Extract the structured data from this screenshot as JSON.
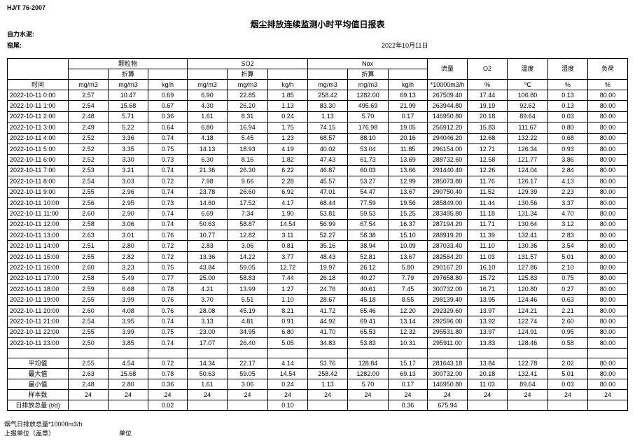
{
  "header": {
    "standard": "HJ/T  76-2007",
    "title": "烟尘排放连续监测小时平均值日报表",
    "company": "自力水泥:",
    "unit": "窑尾:",
    "date": "2022年10月11日"
  },
  "table": {
    "groups": [
      "颗粒物",
      "SO2",
      "Nox"
    ],
    "converted": [
      "折算",
      "折算",
      "折算"
    ],
    "others": [
      "流量",
      "O2",
      "温度",
      "湿度",
      "负荷"
    ],
    "time_label": "时间",
    "units": [
      "mg/m3",
      "mg/m3",
      "kg/h",
      "mg/m3",
      "mg/m3",
      "kg/h",
      "mg/m3",
      "mg/m3",
      "kg/h",
      "*10000m3/h",
      "%",
      "℃",
      "%",
      "%"
    ],
    "rows": [
      [
        "2022-10-11 0:00",
        "2.57",
        "10.47",
        "0.69",
        "6.90",
        "22.85",
        "1.85",
        "258.42",
        "1282.00",
        "69.13",
        "267509.40",
        "17.44",
        "106.80",
        "0.13",
        "80.00"
      ],
      [
        "2022-10-11 1:00",
        "2.54",
        "15.68",
        "0.67",
        "4.30",
        "26.20",
        "1.13",
        "83.30",
        "495.69",
        "21.99",
        "263944.80",
        "19.19",
        "92.62",
        "0.13",
        "80.00"
      ],
      [
        "2022-10-11 2:00",
        "2.48",
        "5.71",
        "0.36",
        "1.61",
        "8.31",
        "0.24",
        "1.13",
        "5.70",
        "0.17",
        "146950.80",
        "20.18",
        "89.64",
        "0.03",
        "80.00"
      ],
      [
        "2022-10-11 3:00",
        "2.49",
        "5.22",
        "0.64",
        "6.80",
        "16.94",
        "1.75",
        "74.15",
        "176.98",
        "19.05",
        "256912.20",
        "15.83",
        "111.67",
        "0.80",
        "80.00"
      ],
      [
        "2022-10-11 4:00",
        "2.52",
        "3.36",
        "0.74",
        "4.18",
        "5.45",
        "1.23",
        "68.57",
        "88.10",
        "20.16",
        "294046.20",
        "12.68",
        "132.22",
        "0.68",
        "80.00"
      ],
      [
        "2022-10-11 5:00",
        "2.52",
        "3.35",
        "0.75",
        "14.13",
        "18.93",
        "4.19",
        "40.02",
        "53.04",
        "11.85",
        "296154.00",
        "12.71",
        "126.34",
        "0.93",
        "80.00"
      ],
      [
        "2022-10-11 6:00",
        "2.52",
        "3.30",
        "0.73",
        "6.30",
        "8.16",
        "1.82",
        "47.43",
        "61.73",
        "13.69",
        "288732.60",
        "12.58",
        "121.77",
        "3.86",
        "80.00"
      ],
      [
        "2022-10-11 7:00",
        "2.53",
        "3.21",
        "0.74",
        "21.36",
        "26.30",
        "6.22",
        "46.87",
        "60.03",
        "13.66",
        "291440.40",
        "12.26",
        "124.04",
        "2.84",
        "80.00"
      ],
      [
        "2022-10-11 8:00",
        "2.54",
        "3.03",
        "0.72",
        "7.98",
        "9.66",
        "2.28",
        "45.57",
        "53.27",
        "12.99",
        "285073.80",
        "11.76",
        "126.17",
        "4.13",
        "80.00"
      ],
      [
        "2022-10-11 9:00",
        "2.55",
        "2.96",
        "0.74",
        "23.78",
        "26.60",
        "6.92",
        "47.01",
        "54.47",
        "13.67",
        "290750.40",
        "11.52",
        "129.39",
        "2.23",
        "80.00"
      ],
      [
        "2022-10-11 10:00",
        "2.56",
        "2.95",
        "0.73",
        "14.60",
        "17.52",
        "4.17",
        "68.44",
        "77.59",
        "19.56",
        "285849.00",
        "11.44",
        "130.56",
        "3.37",
        "80.00"
      ],
      [
        "2022-10-11 11:00",
        "2.60",
        "2.90",
        "0.74",
        "6.69",
        "7.34",
        "1.90",
        "53.81",
        "59.53",
        "15.25",
        "283495.80",
        "11.18",
        "131.34",
        "4.70",
        "80.00"
      ],
      [
        "2022-10-11 12:00",
        "2.58",
        "3.06",
        "0.74",
        "50.63",
        "58.87",
        "14.54",
        "56.99",
        "67.54",
        "16.37",
        "287194.20",
        "11.71",
        "130.64",
        "3.12",
        "80.00"
      ],
      [
        "2022-10-11 13:00",
        "2.63",
        "3.01",
        "0.76",
        "10.77",
        "12.82",
        "3.11",
        "52.27",
        "58.38",
        "15.10",
        "288919.20",
        "11.39",
        "132.41",
        "2.83",
        "80.00"
      ],
      [
        "2022-10-11 14:00",
        "2.51",
        "2.80",
        "0.72",
        "2.83",
        "3.06",
        "0.81",
        "35.16",
        "38.94",
        "10.09",
        "287033.40",
        "11.10",
        "130.36",
        "3.54",
        "80.00"
      ],
      [
        "2022-10-11 15:00",
        "2.55",
        "2.82",
        "0.72",
        "13.36",
        "14.22",
        "3.77",
        "48.43",
        "52.81",
        "13.67",
        "282564.20",
        "11.03",
        "131.57",
        "5.01",
        "80.00"
      ],
      [
        "2022-10-11 16:00",
        "2.60",
        "3.23",
        "0.75",
        "43.84",
        "59.05",
        "12.72",
        "19.97",
        "26.12",
        "5.80",
        "290167.20",
        "16.10",
        "127.86",
        "2.10",
        "80.00"
      ],
      [
        "2022-10-11 17:00",
        "2.58",
        "5.49",
        "0.77",
        "25.00",
        "58.83",
        "7.44",
        "26.18",
        "40.27",
        "7.79",
        "297658.80",
        "15.72",
        "125.83",
        "0.75",
        "80.00"
      ],
      [
        "2022-10-11 18:00",
        "2.59",
        "6.68",
        "0.78",
        "4.21",
        "13.99",
        "1.27",
        "24.76",
        "40.61",
        "7.45",
        "300732.00",
        "16.71",
        "120.80",
        "0.27",
        "80.00"
      ],
      [
        "2022-10-11 19:00",
        "2.55",
        "3.99",
        "0.76",
        "3.70",
        "5.51",
        "1.10",
        "28.67",
        "45.18",
        "8.55",
        "298139.40",
        "13.95",
        "124.46",
        "0.63",
        "80.00"
      ],
      [
        "2022-10-11 20:00",
        "2.60",
        "4.08",
        "0.76",
        "28.08",
        "45.19",
        "8.21",
        "41.72",
        "65.46",
        "12.20",
        "292329.60",
        "13.97",
        "124.21",
        "2.21",
        "80.00"
      ],
      [
        "2022-10-11 21:00",
        "2.54",
        "3.95",
        "0.74",
        "3.13",
        "4.81",
        "0.91",
        "44.92",
        "69.41",
        "13.14",
        "292596.00",
        "13.92",
        "122.74",
        "2.60",
        "80.00"
      ],
      [
        "2022-10-11 22:00",
        "2.55",
        "3.99",
        "0.75",
        "23.00",
        "34.95",
        "6.80",
        "41.70",
        "65.53",
        "12.32",
        "295531.80",
        "13.97",
        "124.91",
        "0.95",
        "80.00"
      ],
      [
        "2022-10-11 23:00",
        "2.50",
        "3.85",
        "0.74",
        "17.07",
        "26.40",
        "5.05",
        "34.83",
        "53.83",
        "10.31",
        "295911.00",
        "13.83",
        "128.46",
        "0.58",
        "80.00"
      ]
    ],
    "summary": [
      [
        "平均值",
        "2.55",
        "4.54",
        "0.72",
        "14.34",
        "22.17",
        "4.14",
        "53.76",
        "128.84",
        "15.17",
        "281643.18",
        "13.84",
        "122.78",
        "2.02",
        "80.00"
      ],
      [
        "最大值",
        "2.63",
        "15.68",
        "0.78",
        "50.63",
        "59.05",
        "14.54",
        "258.42",
        "1282.00",
        "69.13",
        "300732.00",
        "20.18",
        "132.41",
        "5.01",
        "80.00"
      ],
      [
        "最小值",
        "2.48",
        "2.80",
        "0.36",
        "1.61",
        "3.06",
        "0.24",
        "1.13",
        "5.70",
        "0.17",
        "146950.80",
        "11.03",
        "89.64",
        "0.03",
        "80.00"
      ],
      [
        "样本数",
        "24",
        "24",
        "24",
        "24",
        "24",
        "24",
        "24",
        "24",
        "24",
        "24",
        "24",
        "24",
        "24",
        "24"
      ],
      [
        "日排放总量 (t/d)",
        null,
        null,
        "0.02",
        null,
        null,
        "0.10",
        null,
        null,
        "0.36",
        "675.94",
        null,
        null,
        null,
        null
      ]
    ]
  },
  "footer": {
    "flow_total": "烟气日排放总量*10000m3/h",
    "reporter": "上报单位（盖章）",
    "unit": "单位"
  }
}
